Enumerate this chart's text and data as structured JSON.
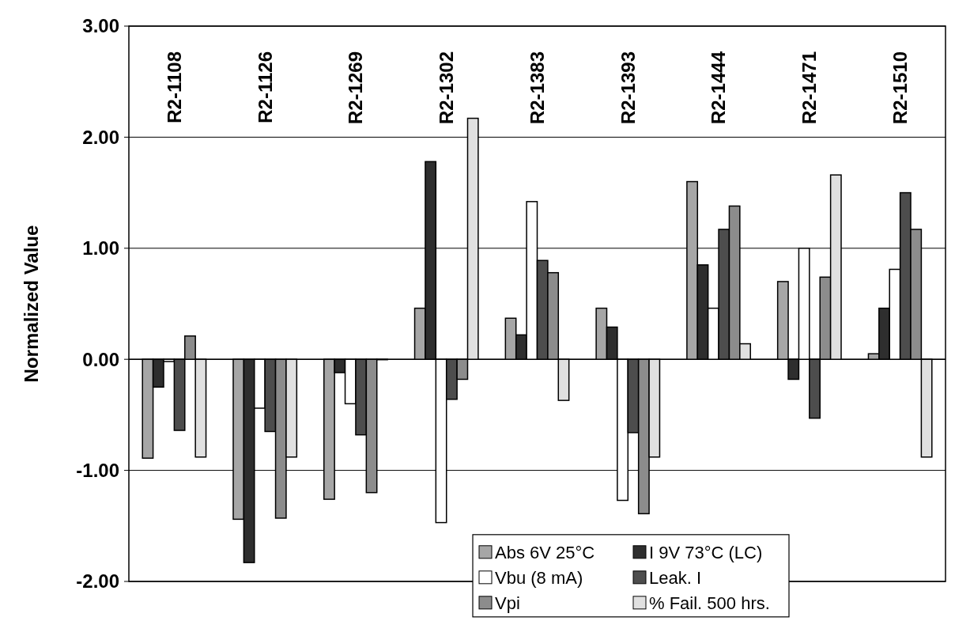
{
  "chart_data": {
    "type": "bar",
    "ylabel": "Normalized Value",
    "categories": [
      "R2-1108",
      "R2-1126",
      "R2-1269",
      "R2-1302",
      "R2-1383",
      "R2-1393",
      "R2-1444",
      "R2-1471",
      "R2-1510"
    ],
    "series": [
      {
        "name": "Abs 6V 25°C",
        "color": "#a6a6a6",
        "values": [
          -0.89,
          -1.44,
          -1.26,
          0.46,
          0.37,
          0.46,
          1.6,
          0.7,
          0.05
        ]
      },
      {
        "name": "I 9V 73°C (LC)",
        "color": "#2e2e2e",
        "values": [
          -0.25,
          -1.83,
          -0.12,
          1.78,
          0.22,
          0.29,
          0.85,
          -0.18,
          0.46
        ]
      },
      {
        "name": "Vbu (8 mA)",
        "color": "#ffffff",
        "values": [
          -0.02,
          -0.44,
          -0.4,
          -1.47,
          1.42,
          -1.27,
          0.46,
          1.0,
          0.81
        ]
      },
      {
        "name": "Leak. I",
        "color": "#4d4d4d",
        "values": [
          -0.64,
          -0.65,
          -0.68,
          -0.36,
          0.89,
          -0.66,
          1.17,
          -0.53,
          1.5
        ]
      },
      {
        "name": "Vpi",
        "color": "#8c8c8c",
        "values": [
          0.21,
          -1.43,
          -1.2,
          -0.18,
          0.78,
          -1.39,
          1.38,
          0.74,
          1.17
        ]
      },
      {
        "name": "% Fail. 500 hrs.",
        "color": "#e0e0e0",
        "values": [
          -0.88,
          -0.88,
          0,
          2.17,
          -0.37,
          -0.88,
          0.14,
          1.66,
          -0.88
        ]
      }
    ],
    "ylim": [
      -2,
      3
    ],
    "yticks": [
      {
        "value": -2,
        "label": "-2.00"
      },
      {
        "value": -1,
        "label": "-1.00"
      },
      {
        "value": 0,
        "label": "0.00"
      },
      {
        "value": 1,
        "label": "1.00"
      },
      {
        "value": 2,
        "label": "2.00"
      },
      {
        "value": 3,
        "label": "3.00"
      }
    ],
    "grid": "y",
    "legend": "bottom right"
  }
}
